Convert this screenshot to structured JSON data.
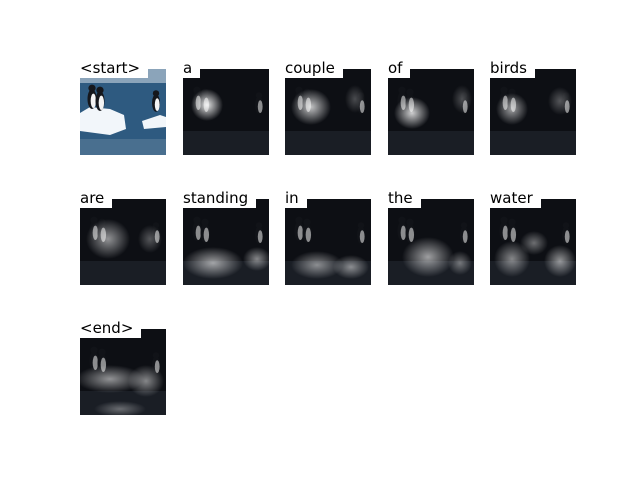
{
  "tokens": [
    "<start>",
    "a",
    "couple",
    "of",
    "birds",
    "are",
    "standing",
    "in",
    "the",
    "water",
    "<end>"
  ],
  "colors": {
    "sky": "#e8eef3",
    "water": "#2e5a80",
    "ice": "#f2f6fa",
    "penguin_dark": "#15171c",
    "attention_dark": "#0e1014",
    "attention_glow": "#ffffff"
  }
}
